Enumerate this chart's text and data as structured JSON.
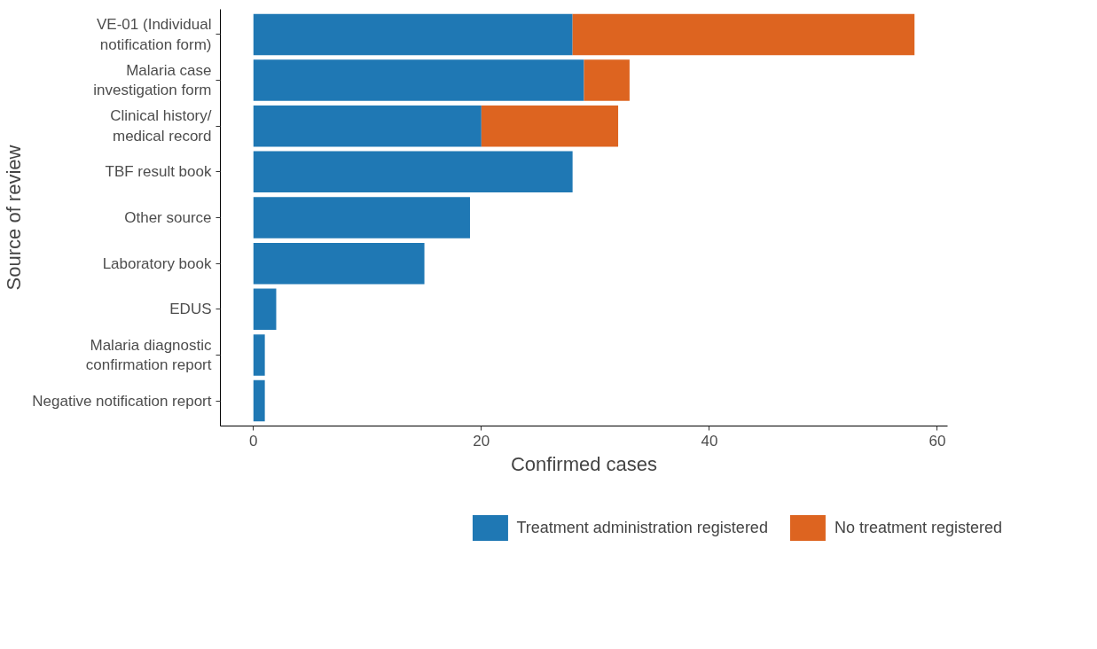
{
  "chart_data": {
    "type": "bar",
    "orientation": "horizontal",
    "stacked": true,
    "xlabel": "Confirmed cases",
    "ylabel": "Source of review",
    "categories": [
      "VE-01 (Individual\nnotification form)",
      "Malaria case\ninvestigation form",
      "Clinical history/\nmedical record",
      "TBF result book",
      "Other source",
      "Laboratory book",
      "EDUS",
      "Malaria diagnostic\nconfirmation report",
      "Negative notification report"
    ],
    "series": [
      {
        "name": "Treatment administration registered",
        "color": "#1f78b4",
        "values": [
          28,
          29,
          20,
          28,
          19,
          15,
          2,
          1,
          1
        ]
      },
      {
        "name": "No treatment registered",
        "color": "#dd6420",
        "values": [
          30,
          4,
          12,
          0,
          0,
          0,
          0,
          0,
          0
        ]
      }
    ],
    "xlim": [
      -2.9,
      60.9
    ],
    "xticks": [
      0,
      20,
      40,
      60
    ],
    "grid": false,
    "legend": "bottom"
  }
}
